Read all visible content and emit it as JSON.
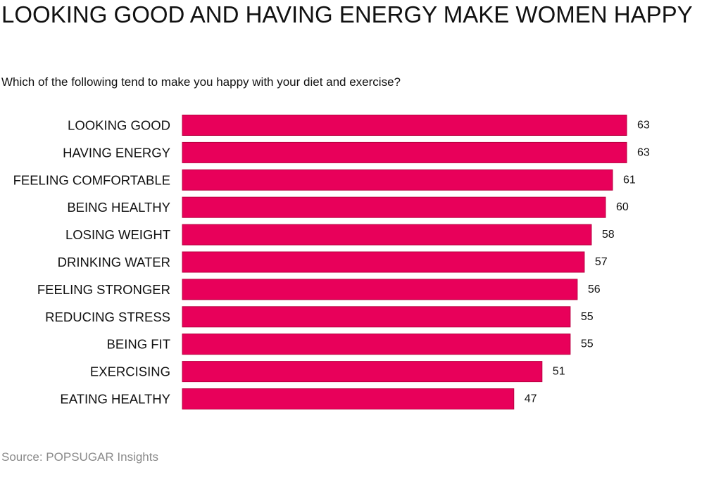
{
  "title": "LOOKING GOOD AND HAVING ENERGY MAKE WOMEN HAPPY",
  "subtitle": "Which of the following tend to make you happy with your diet and exercise?",
  "source": "Source: POPSUGAR Insights",
  "colors": {
    "bar": "#e8005a",
    "bar_stroke": "#b8003f",
    "text": "#111111",
    "source_text": "#8a8a8a"
  },
  "chart_data": {
    "type": "bar",
    "orientation": "horizontal",
    "categories": [
      "LOOKING GOOD",
      "HAVING ENERGY",
      "FEELING COMFORTABLE",
      "BEING HEALTHY",
      "LOSING WEIGHT",
      "DRINKING WATER",
      "FEELING STRONGER",
      "REDUCING STRESS",
      "BEING FIT",
      "EXERCISING",
      "EATING HEALTHY"
    ],
    "values": [
      63,
      63,
      61,
      60,
      58,
      57,
      56,
      55,
      55,
      51,
      47
    ],
    "xlim": [
      0,
      63
    ],
    "grid": false,
    "legend": "none",
    "data_labels": true
  }
}
